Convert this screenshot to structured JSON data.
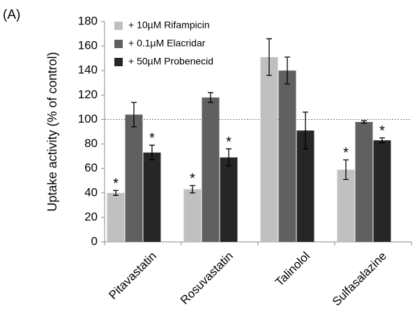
{
  "chart_data": {
    "type": "bar",
    "panel_label": "(A)",
    "y_label": "Uptake activity (% of control)",
    "categories": [
      "Pitavastatin",
      "Rosuvastatin",
      "Talinolol",
      "Sulfasalazine"
    ],
    "series": [
      {
        "name": "+ 10µM Rifampicin",
        "color": "#c0c0c0",
        "values": [
          40,
          43,
          151,
          59
        ],
        "errors": [
          2,
          3,
          15,
          8
        ],
        "annotations": [
          "*",
          "*",
          null,
          "*"
        ]
      },
      {
        "name": "+ 0.1µM Elacridar",
        "color": "#606060",
        "values": [
          104,
          118,
          140,
          98
        ],
        "errors": [
          10,
          4,
          11,
          1
        ],
        "annotations": [
          null,
          null,
          null,
          null
        ]
      },
      {
        "name": "+ 50µM Probenecid",
        "color": "#262626",
        "values": [
          73,
          69,
          91,
          83
        ],
        "errors": [
          6,
          7,
          15,
          2
        ],
        "annotations": [
          "*",
          "*",
          null,
          "*"
        ]
      }
    ],
    "ylim": [
      0,
      180
    ],
    "yticks": [
      0,
      20,
      40,
      60,
      80,
      100,
      120,
      140,
      160,
      180
    ],
    "grid": false,
    "reference_line": 100,
    "legend": "top-left"
  }
}
